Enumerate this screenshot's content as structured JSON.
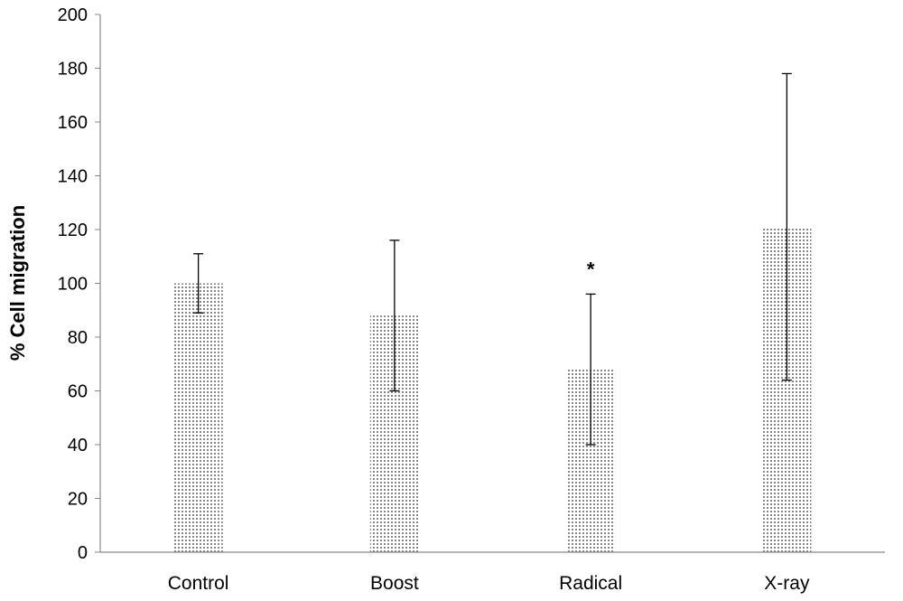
{
  "chart_data": {
    "type": "bar",
    "title": "",
    "xlabel": "",
    "ylabel": "% Cell migration",
    "ylim": [
      0,
      200
    ],
    "yticks": [
      0,
      20,
      40,
      60,
      80,
      100,
      120,
      140,
      160,
      180,
      200
    ],
    "categories": [
      "Control",
      "Boost",
      "Radical",
      "X-ray"
    ],
    "values": [
      100,
      88,
      68,
      121
    ],
    "error_upper": [
      111,
      116,
      96,
      178
    ],
    "error_lower": [
      89,
      60,
      40,
      64
    ],
    "annotations": [
      {
        "category": "Radical",
        "text": "*"
      }
    ],
    "grid": false,
    "legend": "none",
    "bar_fill": "dotted",
    "colors": {
      "bar_dots": "#555555",
      "axis": "#888888",
      "error_bar": "#000000"
    }
  }
}
